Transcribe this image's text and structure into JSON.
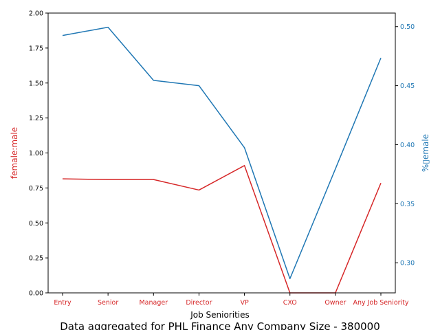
{
  "chart_data": {
    "type": "line",
    "title": "Data aggregated for PHL Finance Any Company Size - 380000",
    "xlabel": "Job Seniorities",
    "categories": [
      "Entry",
      "Senior",
      "Manager",
      "Director",
      "VP",
      "CXO",
      "Owner",
      "Any Job Seniority"
    ],
    "series": [
      {
        "name": "female:male",
        "axis": "left",
        "color": "#d62728",
        "values": [
          0.815,
          0.81,
          0.81,
          0.735,
          0.91,
          0.0,
          0.0,
          0.785
        ]
      },
      {
        "name": "%female",
        "axis": "right",
        "color": "#1f77b4",
        "values": [
          0.4925,
          0.4995,
          0.4545,
          0.45,
          0.3975,
          0.2865,
          0.3795,
          0.4735
        ]
      }
    ],
    "y_left": {
      "label": "female:male",
      "ylim": [
        0,
        2.0
      ],
      "ticks": [
        0.0,
        0.25,
        0.5,
        0.75,
        1.0,
        1.25,
        1.5,
        1.75,
        2.0
      ],
      "tick_labels": [
        "0.00",
        "0.25",
        "0.50",
        "0.75",
        "1.00",
        "1.25",
        "1.50",
        "1.75",
        "2.00"
      ],
      "color": "#d62728"
    },
    "y_right": {
      "label": "%▯emale",
      "ylim": [
        0.2745,
        0.5115
      ],
      "ticks": [
        0.3,
        0.35,
        0.4,
        0.45,
        0.5
      ],
      "tick_labels": [
        "0.30",
        "0.35",
        "0.40",
        "0.45",
        "0.50"
      ],
      "color": "#1f77b4"
    },
    "grid": false,
    "legend": "none"
  }
}
